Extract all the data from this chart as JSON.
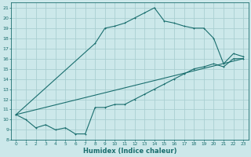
{
  "xlabel": "Humidex (Indice chaleur)",
  "xlim": [
    -0.5,
    23.5
  ],
  "ylim": [
    8,
    21.5
  ],
  "xticks": [
    0,
    1,
    2,
    3,
    4,
    5,
    6,
    7,
    8,
    9,
    10,
    11,
    12,
    13,
    14,
    15,
    16,
    17,
    18,
    19,
    20,
    21,
    22,
    23
  ],
  "yticks": [
    8,
    9,
    10,
    11,
    12,
    13,
    14,
    15,
    16,
    17,
    18,
    19,
    20,
    21
  ],
  "background_color": "#cce8ea",
  "grid_color": "#aacfd2",
  "line_color": "#1a6e6e",
  "line1_x": [
    0,
    1,
    2,
    3,
    4,
    5,
    6,
    7,
    8,
    9,
    10,
    11,
    12,
    13,
    14,
    15,
    16,
    17,
    18,
    19,
    20,
    21,
    22,
    23
  ],
  "line1_y": [
    10.5,
    10.0,
    9.2,
    9.5,
    9.0,
    9.2,
    8.6,
    8.6,
    11.2,
    11.2,
    11.5,
    11.5,
    12.0,
    12.5,
    13.0,
    13.5,
    14.0,
    14.5,
    15.0,
    15.2,
    15.5,
    15.2,
    16.0,
    16.0
  ],
  "line2_x": [
    0,
    8,
    9,
    10,
    11,
    12,
    13,
    14,
    15,
    16,
    17,
    18,
    19,
    20,
    21,
    22,
    23
  ],
  "line2_y": [
    10.5,
    17.5,
    19.0,
    19.2,
    19.5,
    20.0,
    20.5,
    21.0,
    19.7,
    19.5,
    19.2,
    19.0,
    19.0,
    18.0,
    15.5,
    16.5,
    16.2
  ],
  "line3_x": [
    0,
    23
  ],
  "line3_y": [
    10.5,
    16.0
  ]
}
